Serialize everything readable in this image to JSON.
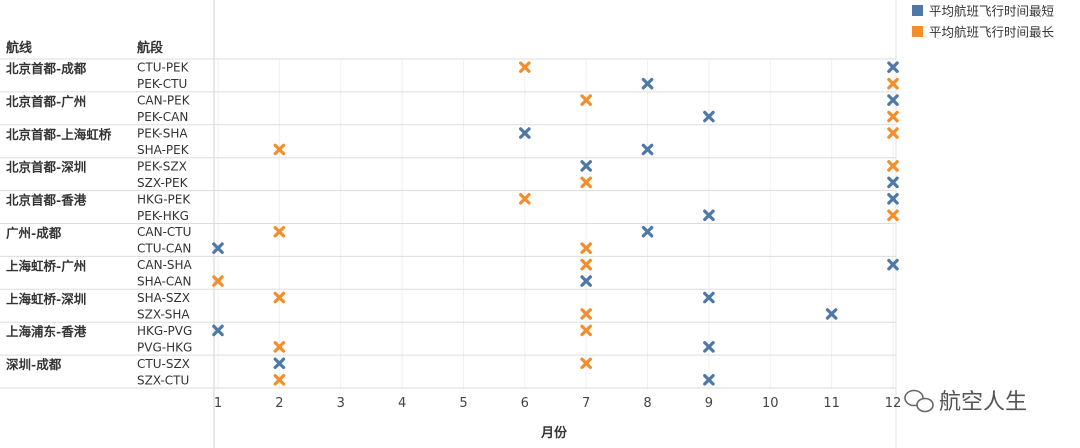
{
  "chart_data": {
    "type": "scatter",
    "headers": {
      "route": "航线",
      "segment": "航段"
    },
    "xlabel": "月份",
    "x_ticks": [
      1,
      2,
      3,
      4,
      5,
      6,
      7,
      8,
      9,
      10,
      11,
      12
    ],
    "xlim": [
      1,
      12
    ],
    "legend_position": "top-right",
    "series": [
      {
        "name": "平均航班飞行时间最短",
        "color": "#4e79a7"
      },
      {
        "name": "平均航班飞行时间最长",
        "color": "#f28e2b"
      }
    ],
    "routes": [
      {
        "name": "北京首都-成都",
        "segments": [
          {
            "code": "CTU-PEK",
            "shortest": 12,
            "longest": 6
          },
          {
            "code": "PEK-CTU",
            "shortest": 8,
            "longest": 12
          }
        ]
      },
      {
        "name": "北京首都-广州",
        "segments": [
          {
            "code": "CAN-PEK",
            "shortest": 12,
            "longest": 7
          },
          {
            "code": "PEK-CAN",
            "shortest": 9,
            "longest": 12
          }
        ]
      },
      {
        "name": "北京首都-上海虹桥",
        "segments": [
          {
            "code": "PEK-SHA",
            "shortest": 6,
            "longest": 12
          },
          {
            "code": "SHA-PEK",
            "shortest": 8,
            "longest": 2
          }
        ]
      },
      {
        "name": "北京首都-深圳",
        "segments": [
          {
            "code": "PEK-SZX",
            "shortest": 7,
            "longest": 12
          },
          {
            "code": "SZX-PEK",
            "shortest": 12,
            "longest": 7
          }
        ]
      },
      {
        "name": "北京首都-香港",
        "segments": [
          {
            "code": "HKG-PEK",
            "shortest": 12,
            "longest": 6
          },
          {
            "code": "PEK-HKG",
            "shortest": 9,
            "longest": 12
          }
        ]
      },
      {
        "name": "广州-成都",
        "segments": [
          {
            "code": "CAN-CTU",
            "shortest": 8,
            "longest": 2
          },
          {
            "code": "CTU-CAN",
            "shortest": 1,
            "longest": 7
          }
        ]
      },
      {
        "name": "上海虹桥-广州",
        "segments": [
          {
            "code": "CAN-SHA",
            "shortest": 12,
            "longest": 7
          },
          {
            "code": "SHA-CAN",
            "shortest": 7,
            "longest": 1
          }
        ]
      },
      {
        "name": "上海虹桥-深圳",
        "segments": [
          {
            "code": "SHA-SZX",
            "shortest": 9,
            "longest": 2
          },
          {
            "code": "SZX-SHA",
            "shortest": 11,
            "longest": 7
          }
        ]
      },
      {
        "name": "上海浦东-香港",
        "segments": [
          {
            "code": "HKG-PVG",
            "shortest": 1,
            "longest": 7
          },
          {
            "code": "PVG-HKG",
            "shortest": 9,
            "longest": 2
          }
        ]
      },
      {
        "name": "深圳-成都",
        "segments": [
          {
            "code": "CTU-SZX",
            "shortest": 2,
            "longest": 7
          },
          {
            "code": "SZX-CTU",
            "shortest": 9,
            "longest": 2
          }
        ]
      }
    ]
  },
  "watermark": "航空人生"
}
